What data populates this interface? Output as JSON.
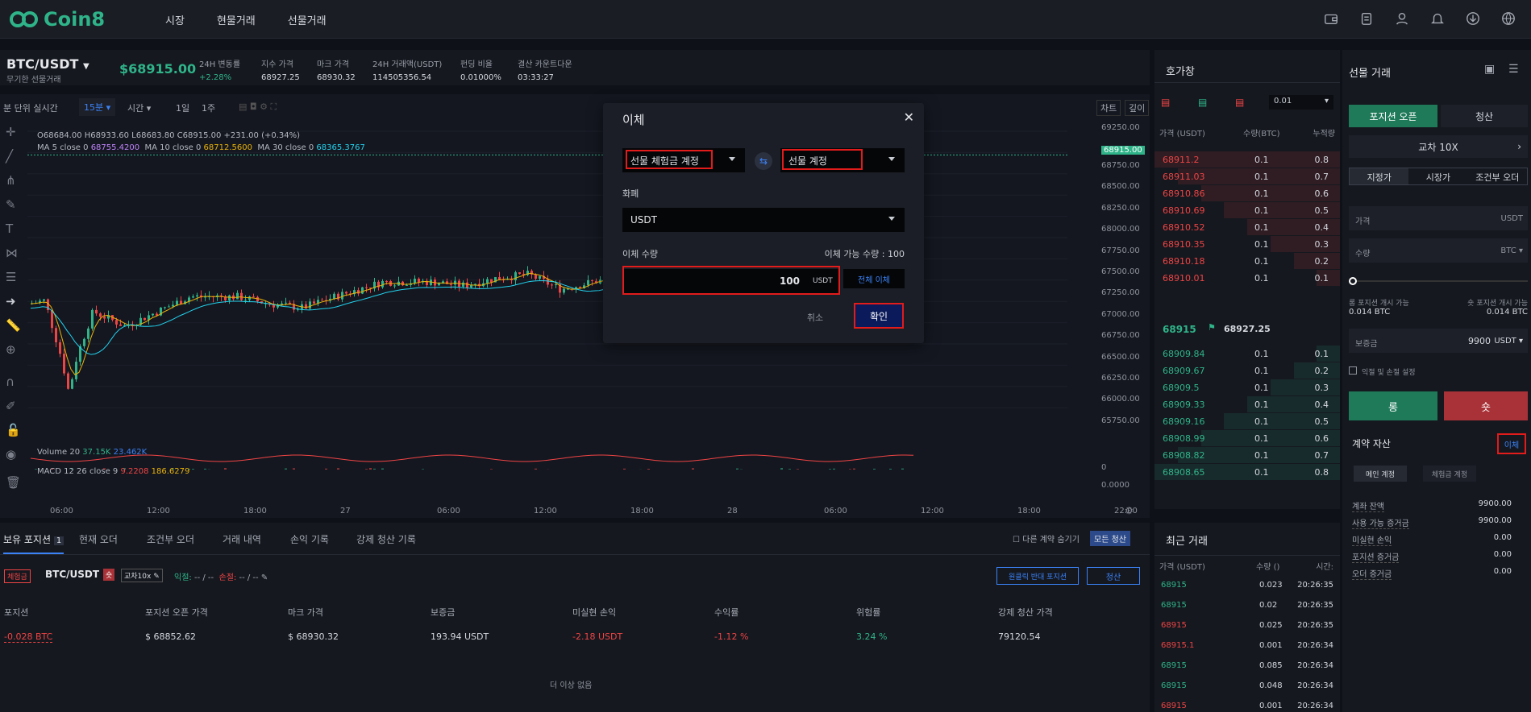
{
  "nav": {
    "logo": "Coin8",
    "links": [
      "시장",
      "현물거래",
      "선물거래"
    ]
  },
  "ticker": {
    "symbol": "BTC/USDT",
    "subtitle": "무기한 선물거래",
    "price": "$68915.00",
    "stats": [
      {
        "label": "24H 변동률",
        "value": "+2.28%"
      },
      {
        "label": "지수 가격",
        "value": "68927.25"
      },
      {
        "label": "마크 가격",
        "value": "68930.32"
      },
      {
        "label": "24H 거래액(USDT)",
        "value": "114505356.54"
      },
      {
        "label": "펀딩 비율",
        "value": "0.01000%"
      },
      {
        "label": "결산 카운트다운",
        "value": "03:33:27"
      }
    ]
  },
  "chart_toolbar": {
    "realtime": "분 단위 실시간",
    "interval": "15분",
    "time": "시간",
    "day": "1일",
    "week": "1주",
    "tab_chart": "차트",
    "tab_depth": "깊이"
  },
  "chart_info": {
    "ohlc": "O68684.00 H68933.60 L68683.80 C68915.00 +231.00 (+0.34%)",
    "ma5": "MA 5 close 0",
    "ma5_v": "68755.4200",
    "ma10": "MA 10 close 0",
    "ma10_v": "68712.5600",
    "ma30": "MA 30 close 0",
    "ma30_v": "68365.3767",
    "volume": "Volume 20",
    "vol1": "37.15K",
    "vol2": "23.462K",
    "macd": "MACD 12 26 close 9",
    "macd1": "9.2208",
    "macd2": "186.6279"
  },
  "chart_data": {
    "type": "candlestick",
    "y_ticks": [
      "69250.00",
      "68915.00",
      "68750.00",
      "68500.00",
      "68250.00",
      "68000.00",
      "67750.00",
      "67500.00",
      "67250.00",
      "67000.00",
      "66750.00",
      "66500.00",
      "66250.00",
      "66000.00",
      "65750.00"
    ],
    "macd_ticks": [
      "0",
      "0.0000"
    ],
    "x_ticks": [
      "06:00",
      "12:00",
      "18:00",
      "27",
      "06:00",
      "12:00",
      "18:00",
      "28",
      "06:00",
      "12:00",
      "18:00",
      "22:00"
    ],
    "last_price": 68915.0
  },
  "modal": {
    "title": "이체",
    "from": "선물 체험금 계정",
    "to": "선물 계정",
    "currency_label": "화폐",
    "currency": "USDT",
    "amount_label": "이체 수량",
    "available": "이체 가능 수량 : 100",
    "amount": "100",
    "unit": "USDT",
    "all": "전체 이체",
    "cancel": "취소",
    "confirm": "확인"
  },
  "orderbook": {
    "title": "호가창",
    "precision": "0.01",
    "headers": [
      "가격 (USDT)",
      "수량(BTC)",
      "누적량"
    ],
    "asks": [
      [
        "68911.2",
        "0.1",
        "0.8"
      ],
      [
        "68911.03",
        "0.1",
        "0.7"
      ],
      [
        "68910.86",
        "0.1",
        "0.6"
      ],
      [
        "68910.69",
        "0.1",
        "0.5"
      ],
      [
        "68910.52",
        "0.1",
        "0.4"
      ],
      [
        "68910.35",
        "0.1",
        "0.3"
      ],
      [
        "68910.18",
        "0.1",
        "0.2"
      ],
      [
        "68910.01",
        "0.1",
        "0.1"
      ]
    ],
    "last": "68915",
    "index": "68927.25",
    "bids": [
      [
        "68909.84",
        "0.1",
        "0.1"
      ],
      [
        "68909.67",
        "0.1",
        "0.2"
      ],
      [
        "68909.5",
        "0.1",
        "0.3"
      ],
      [
        "68909.33",
        "0.1",
        "0.4"
      ],
      [
        "68909.16",
        "0.1",
        "0.5"
      ],
      [
        "68908.99",
        "0.1",
        "0.6"
      ],
      [
        "68908.82",
        "0.1",
        "0.7"
      ],
      [
        "68908.65",
        "0.1",
        "0.8"
      ]
    ]
  },
  "trades": {
    "title": "최근 거래",
    "headers": [
      "가격 (USDT)",
      "수량 ()",
      "시간:"
    ],
    "rows": [
      [
        "68915",
        "0.023",
        "20:26:35",
        "g"
      ],
      [
        "68915",
        "0.02",
        "20:26:35",
        "g"
      ],
      [
        "68915",
        "0.025",
        "20:26:35",
        "r"
      ],
      [
        "68915.1",
        "0.001",
        "20:26:34",
        "r"
      ],
      [
        "68915",
        "0.085",
        "20:26:34",
        "g"
      ],
      [
        "68915",
        "0.048",
        "20:26:34",
        "g"
      ],
      [
        "68915",
        "0.001",
        "20:26:34",
        "r"
      ]
    ]
  },
  "bottom": {
    "tabs": [
      "보유 포지션",
      "현재 오더",
      "조건부 오더",
      "거래 내역",
      "손익 기록",
      "강제 청산 기록"
    ],
    "position_count": "1",
    "hide_other": "다른 계약 숨기기",
    "close_all": "모든 청산",
    "badge": "체험금",
    "pair": "BTC/USDT",
    "short_badge": "숏",
    "leverage": "교차10x",
    "tp_label": "익절:",
    "tp_value": "-- / --",
    "sl_label": "손절:",
    "sl_value": "-- / --",
    "reverse": "원클릭 반대 포지션",
    "close": "청산",
    "columns": [
      "포지션",
      "포지션 오픈 가격",
      "마크 가격",
      "보증금",
      "미실현 손익",
      "수익률",
      "위험률",
      "강제 청산 가격"
    ],
    "row": [
      "-0.028 BTC",
      "$ 68852.62",
      "$ 68930.32",
      "193.94 USDT",
      "-2.18 USDT",
      "-1.12 %",
      "3.24 %",
      "79120.54"
    ],
    "empty": "더 이상 없음"
  },
  "right": {
    "title": "선물 거래",
    "open": "포지션 오픈",
    "close": "청산",
    "leverage": "교차 10X",
    "order_types": [
      "지정가",
      "시장가",
      "조건부 오더"
    ],
    "price_label": "가격",
    "price_unit": "USDT",
    "qty_label": "수량",
    "qty_unit": "BTC",
    "long_avail_label": "롱 포지션 개시 가능",
    "long_avail": "0.014 BTC",
    "short_avail_label": "숏 포지션 개시 가능",
    "short_avail": "0.014 BTC",
    "margin_label": "보증금",
    "margin_value": "9900",
    "margin_unit": "USDT",
    "tpsl": "익절 및 손절 설정",
    "long": "롱",
    "short": "숏",
    "assets_title": "계약 자산",
    "transfer": "이체",
    "acct_main": "메인 계정",
    "acct_trial": "체험금 계정",
    "assets": [
      [
        "계좌 잔액",
        "9900.00"
      ],
      [
        "사용 가능 증거금",
        "9900.00"
      ],
      [
        "미실현 손익",
        "0.00"
      ],
      [
        "포지션 증거금",
        "0.00"
      ],
      [
        "오더 증거금",
        "0.00"
      ]
    ]
  }
}
